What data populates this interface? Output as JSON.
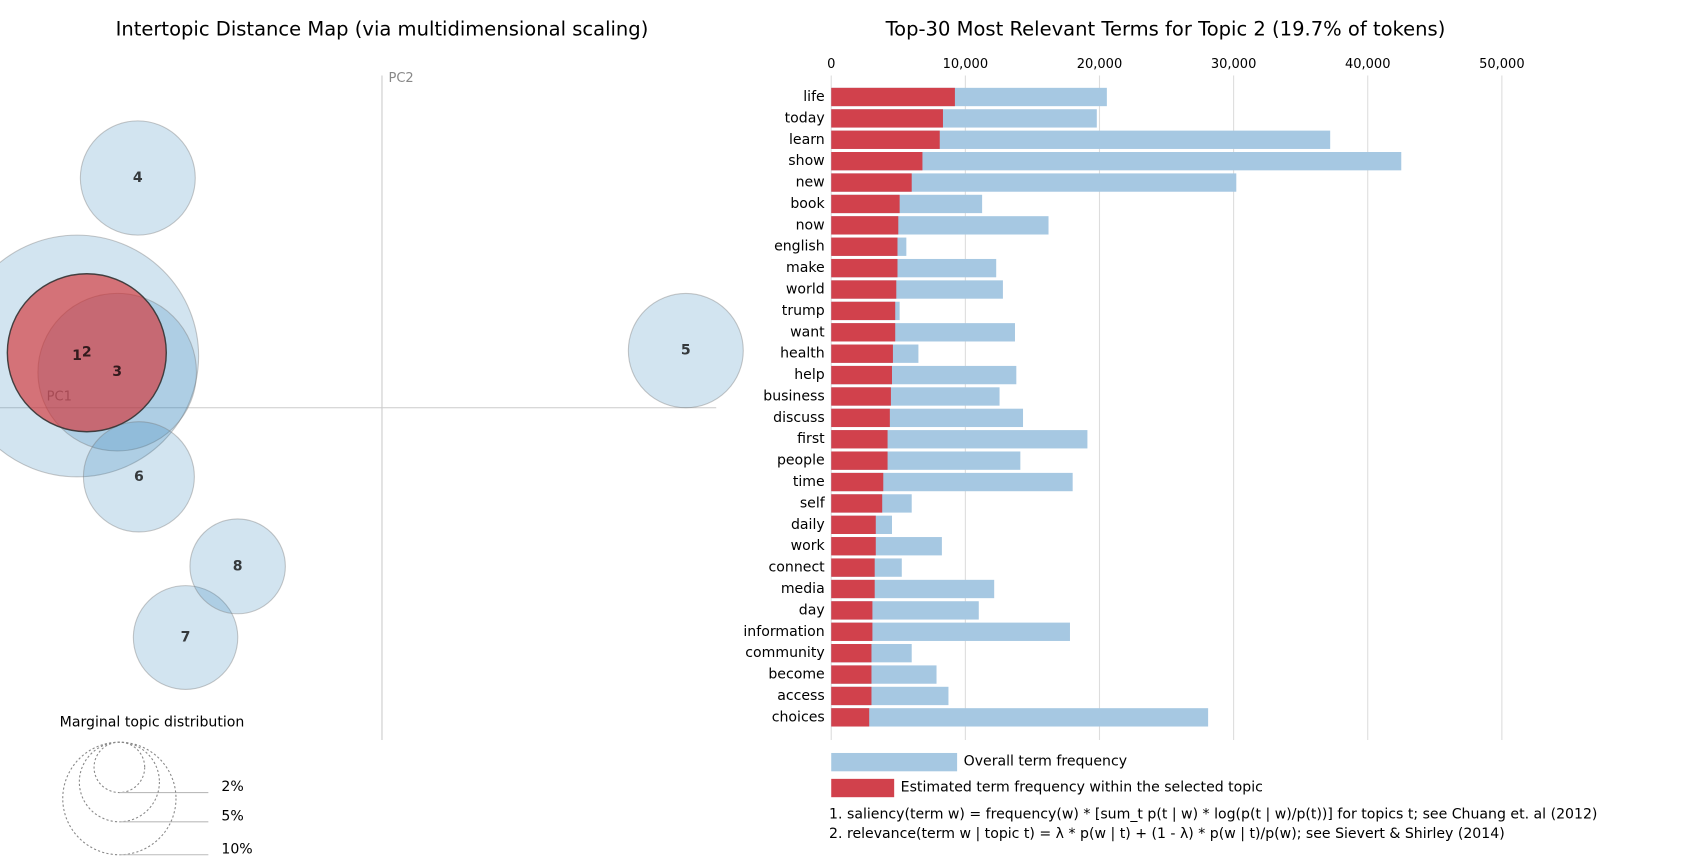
{
  "chart_data": [
    {
      "type": "scatter",
      "title": "Intertopic Distance Map (via multidimensional scaling)",
      "xlabel": "PC1",
      "ylabel": "PC2",
      "xlim": [
        -0.352,
        0.308
      ],
      "ylim": [
        -0.308,
        0.308
      ],
      "labels": [
        "1",
        "2",
        "3",
        "4",
        "5",
        "6",
        "7",
        "8"
      ],
      "x": [
        -0.281,
        -0.272,
        -0.244,
        -0.225,
        0.28,
        -0.224,
        -0.181,
        -0.133
      ],
      "y": [
        0.048,
        0.051,
        0.033,
        0.213,
        0.053,
        -0.064,
        -0.213,
        -0.147
      ],
      "sizes": [
        46.1,
        19.7,
        19.6,
        10.3,
        10.3,
        9.6,
        8.5,
        7.1
      ],
      "color": "#1f77b4",
      "selected": "2",
      "selected_color": "#d62728",
      "size_legend": {
        "title": "Marginal topic distribution",
        "values": [
          {
            "value": 2,
            "label": "2%"
          },
          {
            "value": 5,
            "label": "5%"
          },
          {
            "value": 10,
            "label": "10%"
          }
        ]
      }
    },
    {
      "type": "bar",
      "orientation": "horizontal",
      "title": "Top-30 Most Relevant Terms for Topic 2 (19.7% of tokens)",
      "categories": [
        "life",
        "today",
        "learn",
        "show",
        "new",
        "book",
        "now",
        "english",
        "make",
        "world",
        "trump",
        "want",
        "health",
        "help",
        "business",
        "discuss",
        "first",
        "people",
        "time",
        "self",
        "daily",
        "work",
        "connect",
        "media",
        "day",
        "information",
        "community",
        "become",
        "access",
        "choices"
      ],
      "series": [
        {
          "name": "Overall term frequency",
          "color": "#a6c8e2",
          "values": [
            20550,
            19800,
            37200,
            42500,
            30200,
            11250,
            16200,
            5600,
            12300,
            12800,
            5100,
            13700,
            6500,
            13800,
            12550,
            14300,
            19100,
            14100,
            18000,
            6000,
            4530,
            8250,
            5260,
            12150,
            11000,
            17800,
            6000,
            7850,
            8740,
            28100
          ]
        },
        {
          "name": "Estimated term frequency within the selected topic",
          "color": "#d1414c",
          "values": [
            9220,
            8330,
            8090,
            6800,
            6000,
            5100,
            5000,
            4940,
            4940,
            4850,
            4770,
            4770,
            4600,
            4530,
            4450,
            4370,
            4200,
            4200,
            3880,
            3800,
            3320,
            3320,
            3240,
            3240,
            3070,
            3070,
            3000,
            3000,
            3000,
            2830
          ]
        }
      ],
      "xlim": [
        0,
        50000
      ],
      "xticks": [
        0,
        {
          "value": 10000,
          "label": "10,000"
        },
        {
          "value": 20000,
          "label": "20,000"
        },
        {
          "value": 30000,
          "label": "30,000"
        },
        {
          "value": 40000,
          "label": "40,000"
        },
        {
          "value": 50000,
          "label": "50,000"
        }
      ],
      "grid": true,
      "notes": [
        "1. saliency(term w) = frequency(w) * [sum_t p(t | w) * log(p(t | w)/p(t))] for topics t; see Chuang et. al (2012)",
        "2. relevance(term w | topic t) = λ * p(w | t) + (1 - λ) * p(w | t)/p(w); see Sievert & Shirley (2014)"
      ]
    }
  ]
}
